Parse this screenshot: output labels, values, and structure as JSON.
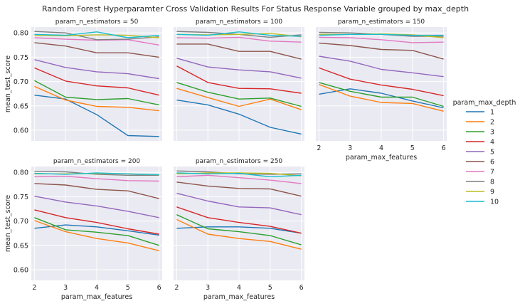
{
  "figure_title": "Random Forest Hyperparamter Cross Validation Results For Status Response Variable grouped by max_depth",
  "legend": {
    "title": "param_max_depth",
    "placement": "right"
  },
  "chart_data": {
    "type": "line",
    "xlabel": "param_max_features",
    "ylabel": "mean_test_score",
    "x": [
      2,
      3,
      4,
      5,
      6
    ],
    "xticks": [
      "2",
      "3",
      "4",
      "5",
      "6"
    ],
    "yticks": [
      "0.60",
      "0.65",
      "0.70",
      "0.75",
      "0.80"
    ],
    "ylim": [
      0.578,
      0.812
    ],
    "xlim": [
      1.9,
      6.1
    ],
    "grid": true,
    "series_colors": [
      "#1f77b4",
      "#ff7f0e",
      "#2ca02c",
      "#d62728",
      "#9467bd",
      "#8c564b",
      "#e377c2",
      "#7f7f7f",
      "#bcbd22",
      "#17becf"
    ],
    "facets": [
      {
        "title": "param_n_estimators = 50",
        "series": [
          {
            "name": "1",
            "values": [
              0.672,
              0.664,
              0.632,
              0.589,
              0.587
            ]
          },
          {
            "name": "2",
            "values": [
              0.69,
              0.662,
              0.649,
              0.647,
              0.64
            ]
          },
          {
            "name": "3",
            "values": [
              0.702,
              0.668,
              0.663,
              0.665,
              0.652
            ]
          },
          {
            "name": "4",
            "values": [
              0.728,
              0.701,
              0.691,
              0.687,
              0.672
            ]
          },
          {
            "name": "5",
            "values": [
              0.745,
              0.729,
              0.72,
              0.716,
              0.706
            ]
          },
          {
            "name": "6",
            "values": [
              0.78,
              0.773,
              0.759,
              0.759,
              0.75
            ]
          },
          {
            "name": "7",
            "values": [
              0.79,
              0.787,
              0.785,
              0.786,
              0.775
            ]
          },
          {
            "name": "8",
            "values": [
              0.803,
              0.8,
              0.786,
              0.787,
              0.792
            ]
          },
          {
            "name": "9",
            "values": [
              0.795,
              0.794,
              0.796,
              0.795,
              0.79
            ]
          },
          {
            "name": "10",
            "values": [
              0.797,
              0.795,
              0.802,
              0.79,
              0.795
            ]
          }
        ]
      },
      {
        "title": "param_n_estimators = 100",
        "series": [
          {
            "name": "1",
            "values": [
              0.662,
              0.652,
              0.633,
              0.606,
              0.592
            ]
          },
          {
            "name": "2",
            "values": [
              0.686,
              0.667,
              0.649,
              0.664,
              0.642
            ]
          },
          {
            "name": "3",
            "values": [
              0.698,
              0.678,
              0.664,
              0.666,
              0.649
            ]
          },
          {
            "name": "4",
            "values": [
              0.732,
              0.698,
              0.686,
              0.685,
              0.676
            ]
          },
          {
            "name": "5",
            "values": [
              0.748,
              0.73,
              0.724,
              0.72,
              0.707
            ]
          },
          {
            "name": "6",
            "values": [
              0.777,
              0.777,
              0.762,
              0.762,
              0.746
            ]
          },
          {
            "name": "7",
            "values": [
              0.79,
              0.789,
              0.791,
              0.783,
              0.781
            ]
          },
          {
            "name": "8",
            "values": [
              0.803,
              0.801,
              0.797,
              0.791,
              0.796
            ]
          },
          {
            "name": "9",
            "values": [
              0.797,
              0.796,
              0.797,
              0.799,
              0.792
            ]
          },
          {
            "name": "10",
            "values": [
              0.797,
              0.795,
              0.802,
              0.795,
              0.793
            ]
          }
        ]
      },
      {
        "title": "param_n_estimators = 150",
        "series": [
          {
            "name": "1",
            "values": [
              0.674,
              0.685,
              0.676,
              0.66,
              0.646
            ]
          },
          {
            "name": "2",
            "values": [
              0.694,
              0.67,
              0.657,
              0.655,
              0.639
            ]
          },
          {
            "name": "3",
            "values": [
              0.698,
              0.68,
              0.668,
              0.668,
              0.649
            ]
          },
          {
            "name": "4",
            "values": [
              0.728,
              0.705,
              0.693,
              0.684,
              0.671
            ]
          },
          {
            "name": "5",
            "values": [
              0.752,
              0.742,
              0.725,
              0.718,
              0.71
            ]
          },
          {
            "name": "6",
            "values": [
              0.779,
              0.774,
              0.766,
              0.764,
              0.746
            ]
          },
          {
            "name": "7",
            "values": [
              0.791,
              0.79,
              0.786,
              0.78,
              0.781
            ]
          },
          {
            "name": "8",
            "values": [
              0.801,
              0.8,
              0.797,
              0.793,
              0.793
            ]
          },
          {
            "name": "9",
            "values": [
              0.797,
              0.797,
              0.798,
              0.796,
              0.79
            ]
          },
          {
            "name": "10",
            "values": [
              0.795,
              0.797,
              0.797,
              0.795,
              0.795
            ]
          }
        ]
      },
      {
        "title": "param_n_estimators = 200",
        "series": [
          {
            "name": "1",
            "values": [
              0.685,
              0.692,
              0.688,
              0.68,
              0.671
            ]
          },
          {
            "name": "2",
            "values": [
              0.701,
              0.678,
              0.664,
              0.655,
              0.639
            ]
          },
          {
            "name": "3",
            "values": [
              0.707,
              0.682,
              0.677,
              0.67,
              0.65
            ]
          },
          {
            "name": "4",
            "values": [
              0.723,
              0.707,
              0.697,
              0.684,
              0.673
            ]
          },
          {
            "name": "5",
            "values": [
              0.751,
              0.739,
              0.731,
              0.72,
              0.707
            ]
          },
          {
            "name": "6",
            "values": [
              0.777,
              0.774,
              0.765,
              0.762,
              0.746
            ]
          },
          {
            "name": "7",
            "values": [
              0.791,
              0.792,
              0.787,
              0.783,
              0.782
            ]
          },
          {
            "name": "8",
            "values": [
              0.802,
              0.801,
              0.796,
              0.794,
              0.794
            ]
          },
          {
            "name": "9",
            "values": [
              0.797,
              0.797,
              0.798,
              0.797,
              0.795
            ]
          },
          {
            "name": "10",
            "values": [
              0.798,
              0.796,
              0.799,
              0.797,
              0.795
            ]
          }
        ]
      },
      {
        "title": "param_n_estimators = 250",
        "series": [
          {
            "name": "1",
            "values": [
              0.685,
              0.688,
              0.688,
              0.685,
              0.675
            ]
          },
          {
            "name": "2",
            "values": [
              0.703,
              0.673,
              0.664,
              0.658,
              0.642
            ]
          },
          {
            "name": "3",
            "values": [
              0.713,
              0.684,
              0.678,
              0.67,
              0.651
            ]
          },
          {
            "name": "4",
            "values": [
              0.729,
              0.707,
              0.697,
              0.689,
              0.675
            ]
          },
          {
            "name": "5",
            "values": [
              0.757,
              0.741,
              0.729,
              0.727,
              0.713
            ]
          },
          {
            "name": "6",
            "values": [
              0.78,
              0.772,
              0.767,
              0.766,
              0.751
            ]
          },
          {
            "name": "7",
            "values": [
              0.791,
              0.794,
              0.789,
              0.784,
              0.777
            ]
          },
          {
            "name": "8",
            "values": [
              0.803,
              0.801,
              0.797,
              0.796,
              0.797
            ]
          },
          {
            "name": "9",
            "values": [
              0.797,
              0.799,
              0.799,
              0.798,
              0.793
            ]
          },
          {
            "name": "10",
            "values": [
              0.799,
              0.797,
              0.798,
              0.791,
              0.794
            ]
          }
        ]
      }
    ]
  }
}
